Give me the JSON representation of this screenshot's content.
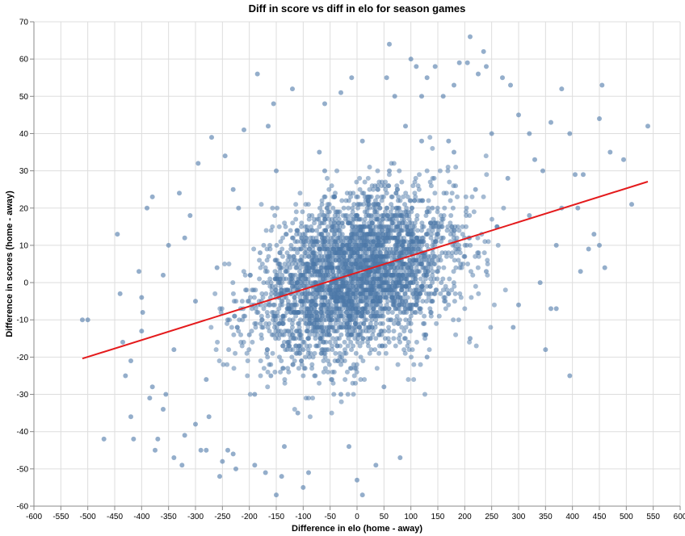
{
  "chart_data": {
    "type": "scatter",
    "title": "Diff in score vs diff in elo for season games",
    "xlabel": "Difference in elo (home - away)",
    "ylabel": "Difference in scores (home - away)",
    "xlim": [
      -600,
      600
    ],
    "ylim": [
      -60,
      70
    ],
    "x_ticks": [
      -600,
      -550,
      -500,
      -450,
      -400,
      -350,
      -300,
      -250,
      -200,
      -150,
      -100,
      -50,
      0,
      50,
      100,
      150,
      200,
      250,
      300,
      350,
      400,
      450,
      500,
      550,
      600
    ],
    "y_ticks": [
      -60,
      -50,
      -40,
      -30,
      -20,
      -10,
      0,
      10,
      20,
      30,
      40,
      50,
      60,
      70
    ],
    "grid": true,
    "regression_line": {
      "x": [
        -510,
        540
      ],
      "y": [
        -20.4,
        27.1
      ],
      "color": "#e41a1c"
    },
    "point_color": "#4c78a8",
    "points": [
      [
        -510,
        -10
      ],
      [
        -500,
        -10
      ],
      [
        -470,
        -42
      ],
      [
        -445,
        13
      ],
      [
        -440,
        -3
      ],
      [
        -435,
        -16
      ],
      [
        -430,
        -25
      ],
      [
        -420,
        -36
      ],
      [
        -415,
        -42
      ],
      [
        -405,
        3
      ],
      [
        -400,
        -13
      ],
      [
        -398,
        -8
      ],
      [
        -390,
        20
      ],
      [
        -385,
        -31
      ],
      [
        -380,
        23
      ],
      [
        -375,
        -45
      ],
      [
        -370,
        -42
      ],
      [
        -360,
        -34
      ],
      [
        -350,
        10
      ],
      [
        -340,
        -47
      ],
      [
        -330,
        24
      ],
      [
        -325,
        -49
      ],
      [
        -320,
        -41
      ],
      [
        -300,
        -38
      ],
      [
        -295,
        32
      ],
      [
        -290,
        -45
      ],
      [
        -280,
        -45
      ],
      [
        -270,
        39
      ],
      [
        -255,
        -52
      ],
      [
        -250,
        -48
      ],
      [
        -245,
        34
      ],
      [
        -240,
        -45
      ],
      [
        -230,
        -46
      ],
      [
        -225,
        -50
      ],
      [
        -210,
        41
      ],
      [
        -190,
        -49
      ],
      [
        -185,
        56
      ],
      [
        -170,
        -51
      ],
      [
        -165,
        42
      ],
      [
        -155,
        48
      ],
      [
        -150,
        -57
      ],
      [
        -140,
        -52
      ],
      [
        -135,
        -44
      ],
      [
        -120,
        52
      ],
      [
        -100,
        -55
      ],
      [
        -90,
        -51
      ],
      [
        -60,
        48
      ],
      [
        -30,
        51
      ],
      [
        -15,
        -44
      ],
      [
        -10,
        55
      ],
      [
        0,
        -53
      ],
      [
        10,
        -57
      ],
      [
        35,
        -49
      ],
      [
        55,
        55
      ],
      [
        60,
        64
      ],
      [
        70,
        50
      ],
      [
        80,
        -47
      ],
      [
        100,
        60
      ],
      [
        110,
        58
      ],
      [
        120,
        50
      ],
      [
        130,
        55
      ],
      [
        145,
        58
      ],
      [
        160,
        50
      ],
      [
        180,
        53
      ],
      [
        190,
        59
      ],
      [
        205,
        59
      ],
      [
        210,
        66
      ],
      [
        225,
        56
      ],
      [
        235,
        62
      ],
      [
        240,
        58
      ],
      [
        270,
        55
      ],
      [
        285,
        53
      ],
      [
        300,
        45
      ],
      [
        320,
        40
      ],
      [
        345,
        30
      ],
      [
        360,
        43
      ],
      [
        380,
        52
      ],
      [
        395,
        -25
      ],
      [
        420,
        29
      ],
      [
        430,
        9
      ],
      [
        440,
        13
      ],
      [
        450,
        44
      ],
      [
        455,
        53
      ],
      [
        460,
        4
      ],
      [
        470,
        35
      ],
      [
        495,
        33
      ],
      [
        510,
        21
      ],
      [
        540,
        42
      ],
      [
        350,
        -18
      ],
      [
        415,
        3
      ],
      [
        405,
        29
      ],
      [
        395,
        40
      ],
      [
        380,
        20
      ],
      [
        370,
        10
      ],
      [
        360,
        -7
      ],
      [
        340,
        0
      ],
      [
        320,
        18
      ],
      [
        300,
        -6
      ],
      [
        280,
        28
      ],
      [
        260,
        15
      ],
      [
        240,
        3
      ],
      [
        220,
        25
      ],
      [
        200,
        7
      ],
      [
        180,
        35
      ],
      [
        160,
        12
      ],
      [
        140,
        20
      ],
      [
        120,
        38
      ],
      [
        100,
        4
      ],
      [
        80,
        15
      ],
      [
        60,
        30
      ],
      [
        40,
        -5
      ],
      [
        20,
        22
      ],
      [
        0,
        8
      ],
      [
        -20,
        -8
      ],
      [
        -40,
        14
      ],
      [
        -60,
        30
      ],
      [
        -80,
        5
      ],
      [
        -100,
        -18
      ],
      [
        -120,
        12
      ],
      [
        -140,
        -2
      ],
      [
        -160,
        -25
      ],
      [
        -180,
        8
      ],
      [
        -200,
        -14
      ],
      [
        -220,
        20
      ],
      [
        -240,
        -10
      ],
      [
        -260,
        4
      ],
      [
        -280,
        -26
      ],
      [
        -300,
        -5
      ],
      [
        -320,
        12
      ],
      [
        -340,
        -18
      ],
      [
        -360,
        2
      ],
      [
        -380,
        -28
      ],
      [
        -400,
        -4
      ],
      [
        -420,
        -21
      ],
      [
        -355,
        -30
      ],
      [
        -310,
        18
      ],
      [
        -275,
        -36
      ],
      [
        -230,
        25
      ],
      [
        -190,
        -30
      ],
      [
        -150,
        30
      ],
      [
        -110,
        -35
      ],
      [
        -70,
        35
      ],
      [
        -30,
        -30
      ],
      [
        10,
        38
      ],
      [
        50,
        -28
      ],
      [
        90,
        42
      ],
      [
        130,
        -20
      ],
      [
        170,
        38
      ],
      [
        210,
        -15
      ],
      [
        250,
        40
      ],
      [
        290,
        -12
      ],
      [
        330,
        33
      ],
      [
        370,
        -7
      ],
      [
        410,
        20
      ],
      [
        450,
        10
      ]
    ]
  }
}
